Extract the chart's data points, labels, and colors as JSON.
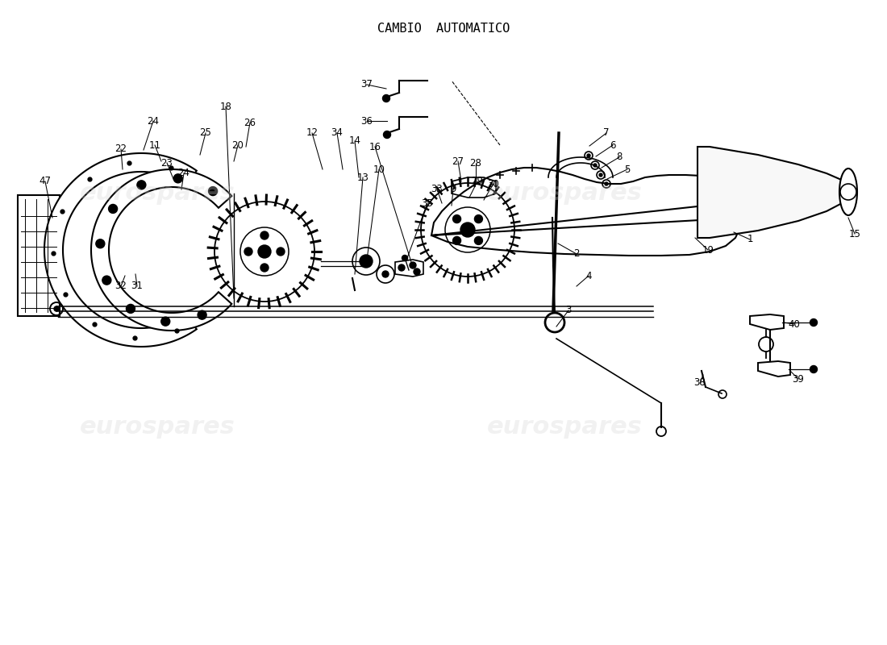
{
  "title": "CAMBIO  AUTOMATICO",
  "title_fontsize": 11,
  "background_color": "#ffffff",
  "watermark_text": "eurospares",
  "fig_width": 11.0,
  "fig_height": 8.0,
  "dpi": 100
}
